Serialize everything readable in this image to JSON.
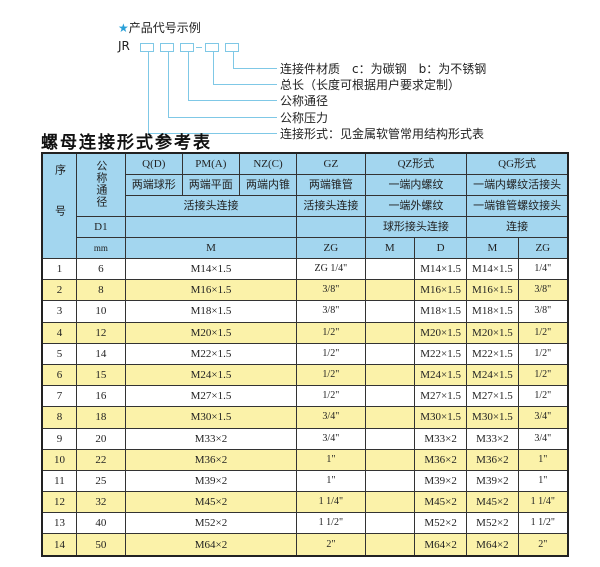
{
  "legend": {
    "heading": "产品代号示例",
    "star_icon": "star",
    "code_prefix": "JR",
    "labels": [
      "连接件材质　c：为碳钢　b：为不锈钢",
      "总长（长度可根据用户要求定制）",
      "公称通径",
      "公称压力",
      "连接形式：见金属软管常用结构形式表"
    ]
  },
  "title": "螺母连接形式参考表",
  "header": {
    "seq": "序号",
    "dn": "公称通径",
    "d1": "D1",
    "mm": "mm",
    "qd": "Q(D)",
    "pm": "PM(A)",
    "nz": "NZ(C)",
    "gz": "GZ",
    "qz": "QZ形式",
    "qg": "QG形式",
    "qd2": "两端球形",
    "pm2": "两端平面",
    "nz2": "两端内锥",
    "gz2": "两端锥管",
    "qz2": "一端内螺纹",
    "qg2": "一端内螺纹活接头",
    "huo": "活接头连接",
    "gz3": "活接头连接",
    "qz3": "一端外螺纹",
    "qg3": "一端锥管螺纹接头",
    "qz4": "球形接头连接",
    "qg4": "连接",
    "m": "M",
    "zg": "ZG",
    "qzm": "M",
    "qzd": "D",
    "qgm": "M",
    "qgzg": "ZG"
  },
  "colors": {
    "header": "#a3d6ef",
    "stripe": "#fbf2a9"
  },
  "rows": [
    {
      "n": "1",
      "d": "6",
      "m": "M14×1.5",
      "zg": "ZG 1/4\"",
      "qzd": "M14×1.5",
      "qgm": "M14×1.5",
      "qgzg": "1/4\""
    },
    {
      "n": "2",
      "d": "8",
      "m": "M16×1.5",
      "zg": "3/8\"",
      "qzd": "M16×1.5",
      "qgm": "M16×1.5",
      "qgzg": "3/8\""
    },
    {
      "n": "3",
      "d": "10",
      "m": "M18×1.5",
      "zg": "3/8\"",
      "qzd": "M18×1.5",
      "qgm": "M18×1.5",
      "qgzg": "3/8\""
    },
    {
      "n": "4",
      "d": "12",
      "m": "M20×1.5",
      "zg": "1/2\"",
      "qzd": "M20×1.5",
      "qgm": "M20×1.5",
      "qgzg": "1/2\""
    },
    {
      "n": "5",
      "d": "14",
      "m": "M22×1.5",
      "zg": "1/2\"",
      "qzd": "M22×1.5",
      "qgm": "M22×1.5",
      "qgzg": "1/2\""
    },
    {
      "n": "6",
      "d": "15",
      "m": "M24×1.5",
      "zg": "1/2\"",
      "qzd": "M24×1.5",
      "qgm": "M24×1.5",
      "qgzg": "1/2\""
    },
    {
      "n": "7",
      "d": "16",
      "m": "M27×1.5",
      "zg": "1/2\"",
      "qzd": "M27×1.5",
      "qgm": "M27×1.5",
      "qgzg": "1/2\""
    },
    {
      "n": "8",
      "d": "18",
      "m": "M30×1.5",
      "zg": "3/4\"",
      "qzd": "M30×1.5",
      "qgm": "M30×1.5",
      "qgzg": "3/4\""
    },
    {
      "n": "9",
      "d": "20",
      "m": "M33×2",
      "zg": "3/4\"",
      "qzd": "M33×2",
      "qgm": "M33×2",
      "qgzg": "3/4\""
    },
    {
      "n": "10",
      "d": "22",
      "m": "M36×2",
      "zg": "1\"",
      "qzd": "M36×2",
      "qgm": "M36×2",
      "qgzg": "1\""
    },
    {
      "n": "11",
      "d": "25",
      "m": "M39×2",
      "zg": "1\"",
      "qzd": "M39×2",
      "qgm": "M39×2",
      "qgzg": "1\""
    },
    {
      "n": "12",
      "d": "32",
      "m": "M45×2",
      "zg": "1 1/4\"",
      "qzd": "M45×2",
      "qgm": "M45×2",
      "qgzg": "1 1/4\""
    },
    {
      "n": "13",
      "d": "40",
      "m": "M52×2",
      "zg": "1 1/2\"",
      "qzd": "M52×2",
      "qgm": "M52×2",
      "qgzg": "1 1/2\""
    },
    {
      "n": "14",
      "d": "50",
      "m": "M64×2",
      "zg": "2\"",
      "qzd": "M64×2",
      "qgm": "M64×2",
      "qgzg": "2\""
    }
  ]
}
